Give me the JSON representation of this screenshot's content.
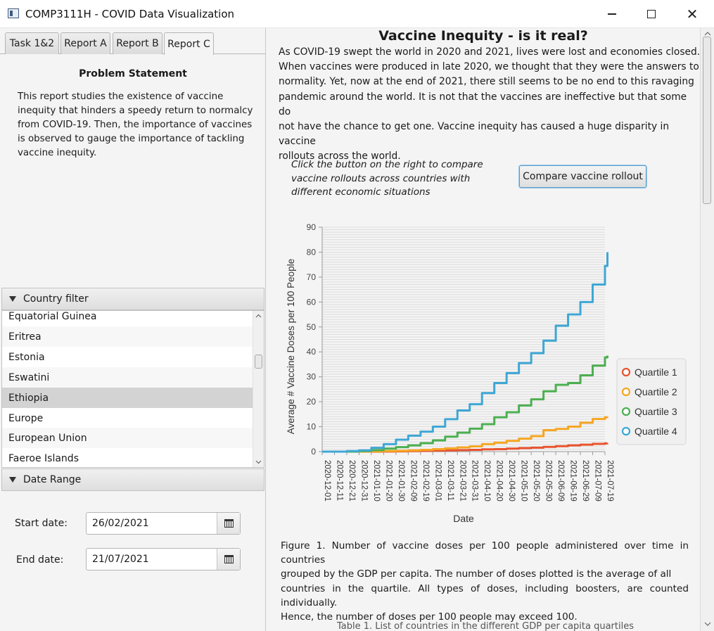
{
  "window": {
    "title": "COMP3111H - COVID Data Visualization"
  },
  "tabs": [
    {
      "label": "Task 1&2"
    },
    {
      "label": "Report A"
    },
    {
      "label": "Report B"
    },
    {
      "label": "Report C"
    }
  ],
  "problem": {
    "title": "Problem Statement",
    "lines": [
      "This report studies the existence of vaccine",
      "inequity that hinders a speedy return to normalcy",
      "from COVID-19. Then, the importance of vaccines",
      "is observed to gauge the importance of tackling",
      "vaccine inequity."
    ]
  },
  "country_filter": {
    "header": "Country filter",
    "items": [
      "Equatorial Guinea",
      "Eritrea",
      "Estonia",
      "Eswatini",
      "Ethiopia",
      "Europe",
      "European Union",
      "Faeroe Islands"
    ],
    "selected": "Ethiopia"
  },
  "date_range": {
    "header": "Date Range",
    "start_label": "Start date:",
    "start_value": "26/02/2021",
    "end_label": "End date:",
    "end_value": "21/07/2021"
  },
  "report": {
    "title": "Vaccine Inequity - is it real?",
    "intro_lines": [
      "As COVID-19 swept the world in 2020 and 2021, lives were lost and economies closed.",
      "When vaccines were produced in late 2020, we thought that they were the answers to",
      "normality. Yet, now at the end of 2021, there still seems to be no end to this ravaging",
      "pandemic around the world. It is not that the vaccines are ineffective but that some do",
      "not have the chance to get one. Vaccine inequity has caused a huge disparity in vaccine",
      "rollouts across the world."
    ],
    "hint_lines": [
      "Click the button on the right to compare",
      "vaccine rollouts across countries with",
      "different economic situations"
    ],
    "compare_button": "Compare vaccine rollout",
    "caption_lines": [
      "Figure 1. Number of vaccine doses per 100 people administered over time in countries",
      "grouped by the GDP per capita. The number of doses plotted is the average of all",
      "countries in the quartile. All types of doses, including boosters, are counted individually.",
      "Hence, the number of doses per 100 people may exceed 100."
    ],
    "cut_text": "Table 1. List of countries in the different GDP per capita quartiles"
  },
  "chart_data": {
    "type": "line",
    "xlabel": "Date",
    "ylabel": "Average # Vaccine Doses per 100 People",
    "ylim": [
      0,
      90
    ],
    "yticks": [
      0,
      10,
      20,
      30,
      40,
      50,
      60,
      70,
      80,
      90
    ],
    "grid": true,
    "legend_position": "right",
    "x_tick_labels": [
      "2020-12-01",
      "2020-12-11",
      "2020-12-21",
      "2020-12-31",
      "2021-01-10",
      "2021-01-20",
      "2021-01-30",
      "2021-02-09",
      "2021-02-19",
      "2021-03-01",
      "2021-03-11",
      "2021-03-21",
      "2021-03-31",
      "2021-04-10",
      "2021-04-20",
      "2021-04-30",
      "2021-05-10",
      "2021-05-20",
      "2021-05-30",
      "2021-06-09",
      "2021-06-19",
      "2021-06-29",
      "2021-07-09",
      "2021-07-19"
    ],
    "x": [
      "2020-12-01",
      "2020-12-11",
      "2020-12-21",
      "2020-12-31",
      "2021-01-10",
      "2021-01-20",
      "2021-01-30",
      "2021-02-09",
      "2021-02-19",
      "2021-03-01",
      "2021-03-11",
      "2021-03-21",
      "2021-03-31",
      "2021-04-10",
      "2021-04-20",
      "2021-04-30",
      "2021-05-10",
      "2021-05-20",
      "2021-05-30",
      "2021-06-09",
      "2021-06-19",
      "2021-06-29",
      "2021-07-09",
      "2021-07-19",
      "2021-07-21"
    ],
    "series": [
      {
        "name": "Quartile 1",
        "color": "#e8532e",
        "values": [
          0,
          0,
          0,
          0,
          0,
          0.05,
          0.1,
          0.2,
          0.3,
          0.4,
          0.5,
          0.6,
          0.7,
          0.9,
          1.0,
          1.2,
          1.4,
          1.6,
          1.9,
          2.2,
          2.5,
          2.8,
          3.1,
          3.3,
          3.4
        ]
      },
      {
        "name": "Quartile 2",
        "color": "#f5a623",
        "values": [
          0,
          0,
          0,
          0,
          0.1,
          0.2,
          0.3,
          0.5,
          0.7,
          1.0,
          1.3,
          1.7,
          2.1,
          3.0,
          3.6,
          4.3,
          5.2,
          6.2,
          8.6,
          9.1,
          10.0,
          11.6,
          13.1,
          13.8,
          14.0
        ]
      },
      {
        "name": "Quartile 3",
        "color": "#4caf50",
        "values": [
          0,
          0,
          0,
          0.2,
          0.6,
          1.2,
          1.8,
          2.5,
          3.4,
          4.5,
          6.0,
          7.6,
          9.2,
          11.0,
          13.8,
          15.8,
          18.5,
          21.0,
          24.2,
          26.8,
          27.5,
          30.6,
          34.5,
          37.8,
          38.5
        ]
      },
      {
        "name": "Quartile 4",
        "color": "#3ea7d4",
        "values": [
          0,
          0,
          0.2,
          0.5,
          1.5,
          3.0,
          4.8,
          6.4,
          8.0,
          10.0,
          13.0,
          16.5,
          19.0,
          23.5,
          27.5,
          31.5,
          35.5,
          39.5,
          44.5,
          50.5,
          55.0,
          60.0,
          67.0,
          74.5,
          80.0
        ]
      }
    ]
  }
}
